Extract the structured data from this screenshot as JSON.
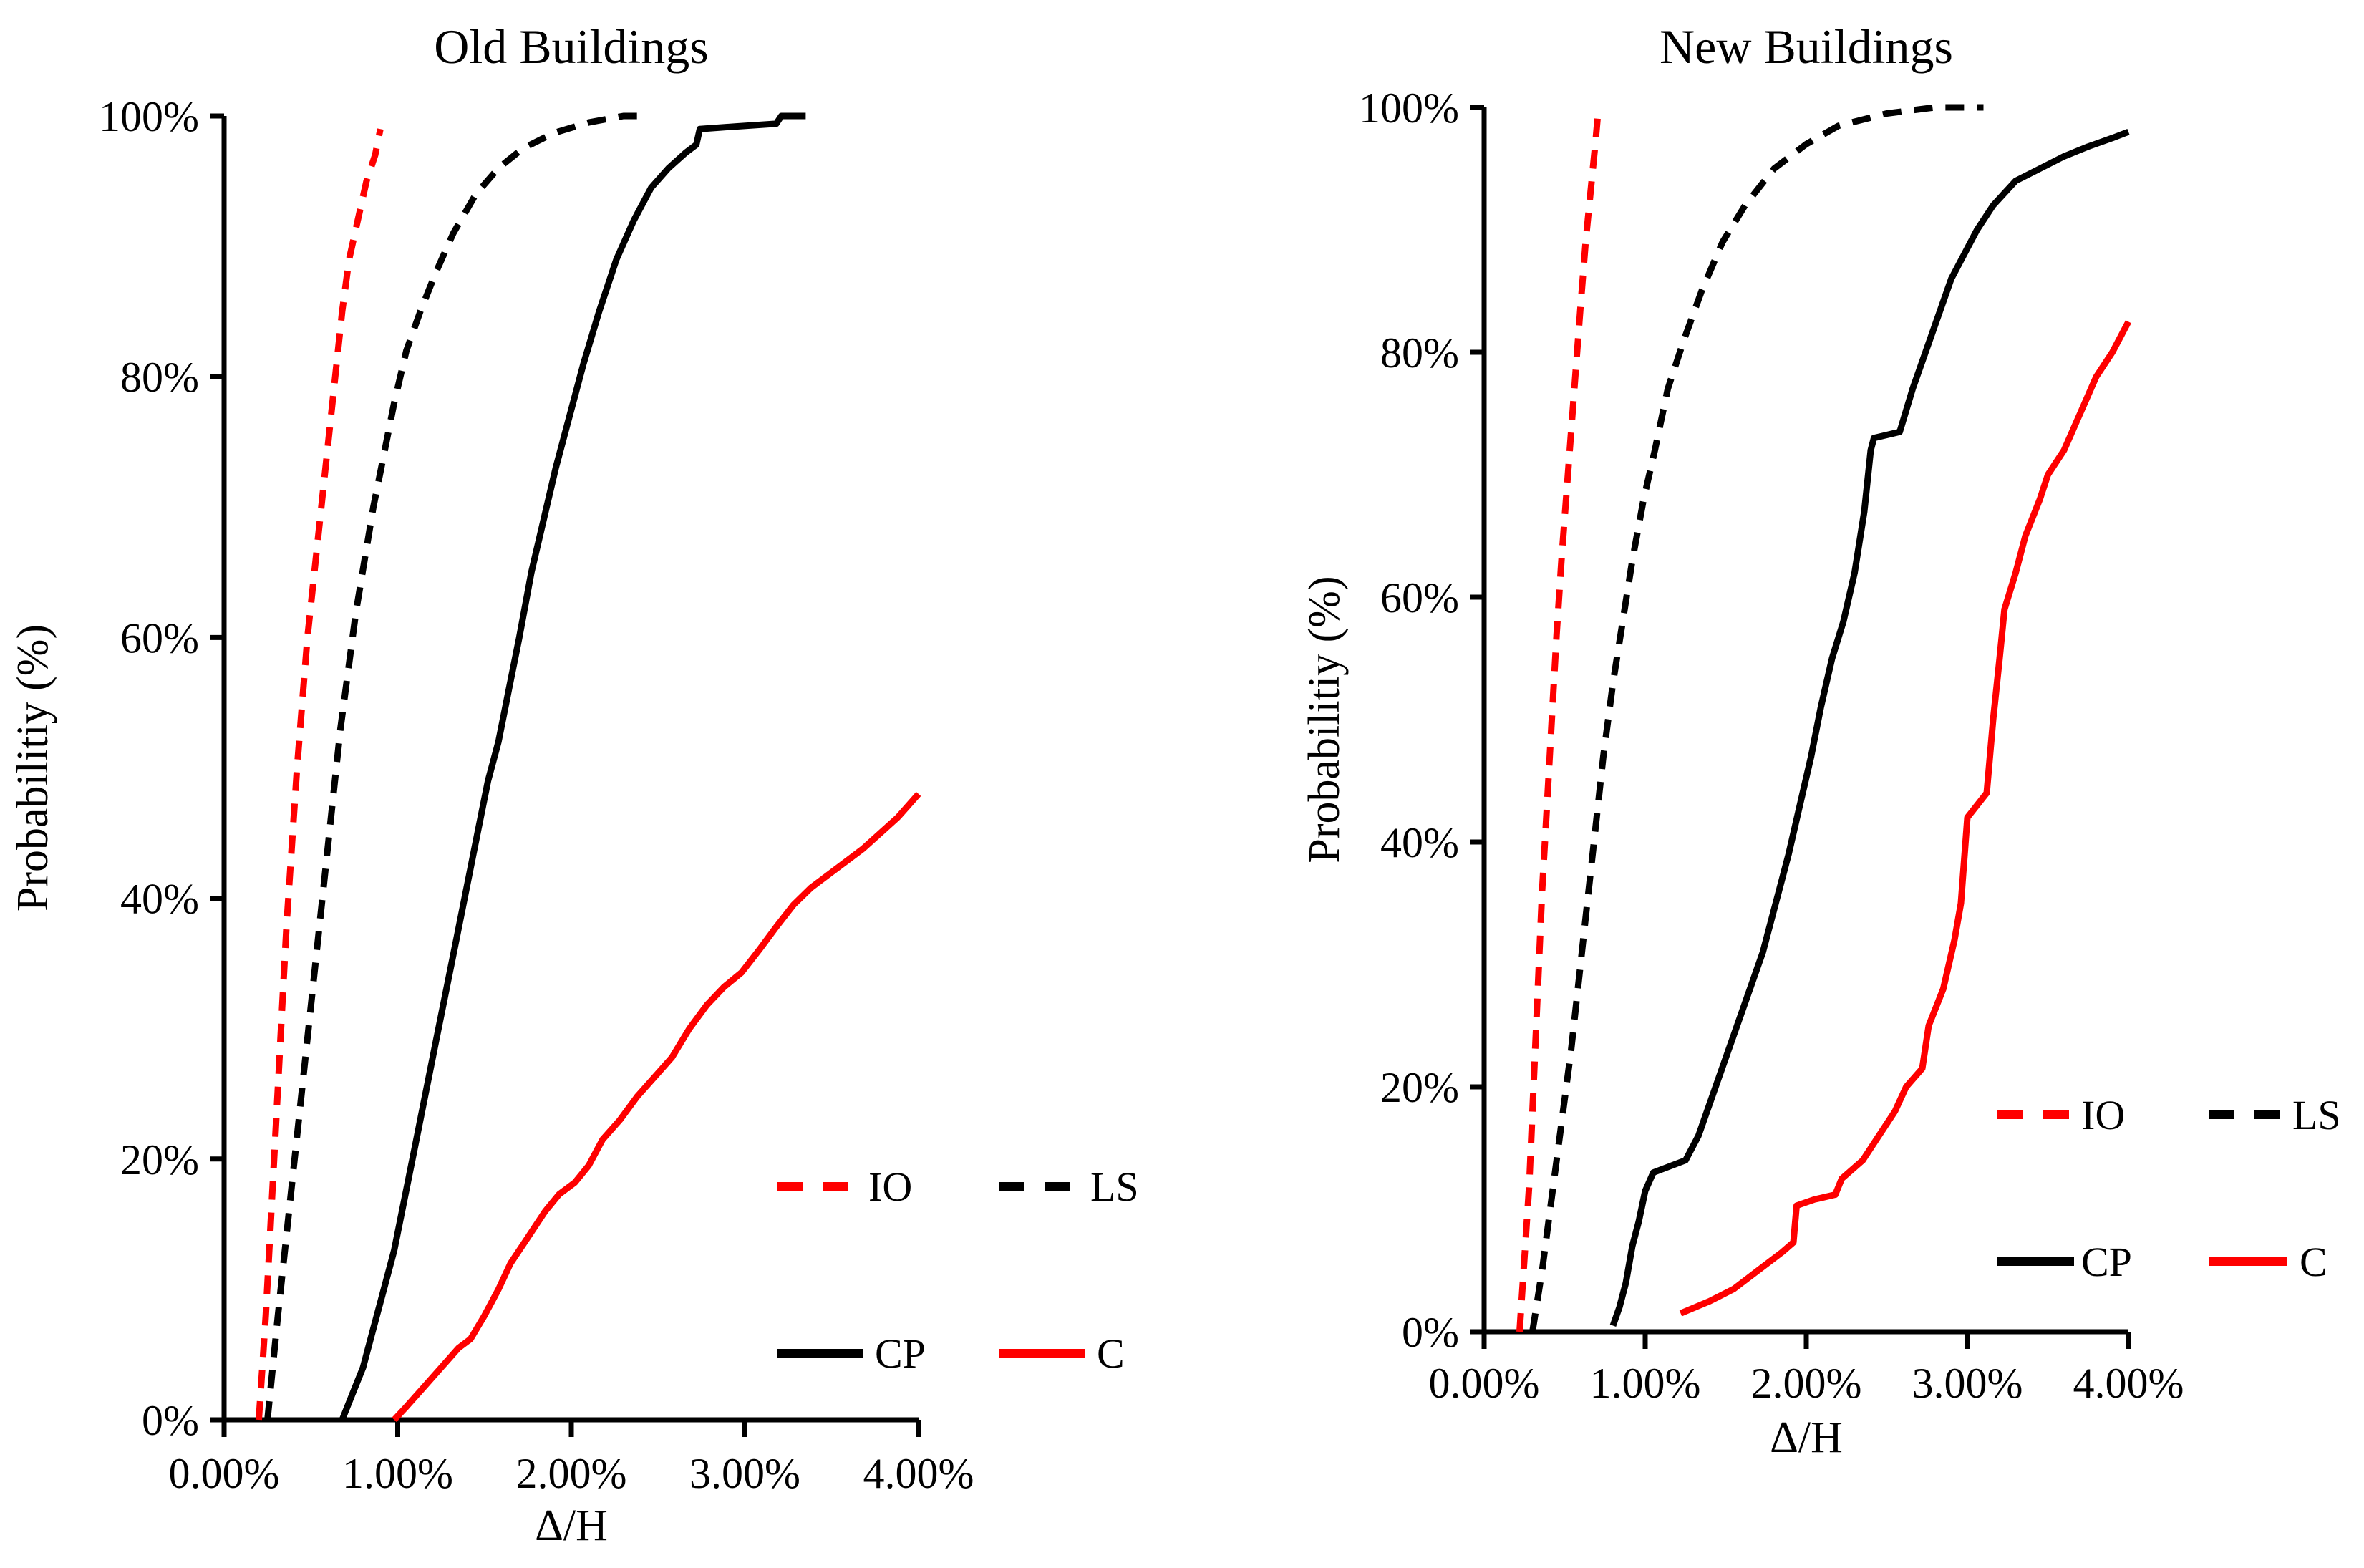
{
  "figure": {
    "background": "#ffffff",
    "text_color": "#000000",
    "accent_red": "#fe0000",
    "accent_black": "#000000"
  },
  "chart_data": [
    {
      "type": "line",
      "title": "Old Buildings",
      "xlabel": "Δ/H",
      "ylabel": "Probabilitiy (%)",
      "xlim": [
        0,
        4
      ],
      "ylim": [
        0,
        100
      ],
      "grid": false,
      "legend_position": "inside-lower-right",
      "x_tick_values": [
        0,
        1,
        2,
        3,
        4
      ],
      "x_tick_labels": [
        "0.00%",
        "1.00%",
        "2.00%",
        "3.00%",
        "4.00%"
      ],
      "y_tick_values": [
        0,
        20,
        40,
        60,
        80,
        100
      ],
      "y_tick_labels": [
        "0%",
        "20%",
        "40%",
        "60%",
        "80%",
        "100%"
      ],
      "series": [
        {
          "name": "IO",
          "color": "#fe0000",
          "style": "dashed",
          "points": [
            [
              0.2,
              0
            ],
            [
              0.22,
              4
            ],
            [
              0.24,
              8
            ],
            [
              0.26,
              13
            ],
            [
              0.28,
              18
            ],
            [
              0.3,
              23
            ],
            [
              0.32,
              28
            ],
            [
              0.34,
              33
            ],
            [
              0.36,
              38
            ],
            [
              0.39,
              44
            ],
            [
              0.42,
              50
            ],
            [
              0.45,
              55
            ],
            [
              0.48,
              60
            ],
            [
              0.52,
              65
            ],
            [
              0.56,
              70
            ],
            [
              0.6,
              75
            ],
            [
              0.64,
              80
            ],
            [
              0.68,
              85
            ],
            [
              0.72,
              89
            ],
            [
              0.77,
              92
            ],
            [
              0.82,
              95
            ],
            [
              0.87,
              97
            ],
            [
              0.9,
              99
            ]
          ]
        },
        {
          "name": "LS",
          "color": "#000000",
          "style": "dashed",
          "points": [
            [
              0.25,
              0
            ],
            [
              0.28,
              4
            ],
            [
              0.31,
              8
            ],
            [
              0.35,
              13
            ],
            [
              0.39,
              18
            ],
            [
              0.43,
              23
            ],
            [
              0.47,
              28
            ],
            [
              0.51,
              33
            ],
            [
              0.55,
              38
            ],
            [
              0.59,
              43
            ],
            [
              0.63,
              48
            ],
            [
              0.67,
              53
            ],
            [
              0.71,
              57
            ],
            [
              0.76,
              62
            ],
            [
              0.81,
              66
            ],
            [
              0.86,
              70
            ],
            [
              0.92,
              74
            ],
            [
              0.98,
              78
            ],
            [
              1.05,
              82
            ],
            [
              1.13,
              85
            ],
            [
              1.22,
              88
            ],
            [
              1.32,
              91
            ],
            [
              1.45,
              94
            ],
            [
              1.58,
              96
            ],
            [
              1.72,
              97.5
            ],
            [
              1.9,
              98.7
            ],
            [
              2.1,
              99.5
            ],
            [
              2.3,
              100
            ],
            [
              2.45,
              100
            ]
          ]
        },
        {
          "name": "CP",
          "color": "#000000",
          "style": "solid",
          "points": [
            [
              0.68,
              0
            ],
            [
              0.74,
              2
            ],
            [
              0.8,
              4
            ],
            [
              0.86,
              7
            ],
            [
              0.92,
              10
            ],
            [
              0.98,
              13
            ],
            [
              1.04,
              17
            ],
            [
              1.1,
              21
            ],
            [
              1.16,
              25
            ],
            [
              1.22,
              29
            ],
            [
              1.28,
              33
            ],
            [
              1.34,
              37
            ],
            [
              1.4,
              41
            ],
            [
              1.46,
              45
            ],
            [
              1.52,
              49
            ],
            [
              1.58,
              52
            ],
            [
              1.64,
              56
            ],
            [
              1.7,
              60
            ],
            [
              1.77,
              65
            ],
            [
              1.84,
              69
            ],
            [
              1.91,
              73
            ],
            [
              1.99,
              77
            ],
            [
              2.07,
              81
            ],
            [
              2.16,
              85
            ],
            [
              2.26,
              89
            ],
            [
              2.36,
              92
            ],
            [
              2.46,
              94.5
            ],
            [
              2.56,
              96
            ],
            [
              2.66,
              97.2
            ],
            [
              2.72,
              97.8
            ],
            [
              2.74,
              99
            ],
            [
              2.95,
              99.2
            ],
            [
              3.18,
              99.4
            ],
            [
              3.21,
              100
            ],
            [
              3.35,
              100
            ]
          ]
        },
        {
          "name": "C",
          "color": "#fe0000",
          "style": "solid",
          "points": [
            [
              0.98,
              0
            ],
            [
              1.05,
              1
            ],
            [
              1.15,
              2.5
            ],
            [
              1.25,
              4
            ],
            [
              1.35,
              5.5
            ],
            [
              1.42,
              6.2
            ],
            [
              1.5,
              8
            ],
            [
              1.58,
              10
            ],
            [
              1.65,
              12
            ],
            [
              1.75,
              14
            ],
            [
              1.85,
              16
            ],
            [
              1.93,
              17.3
            ],
            [
              2.02,
              18.2
            ],
            [
              2.1,
              19.5
            ],
            [
              2.18,
              21.5
            ],
            [
              2.28,
              23
            ],
            [
              2.38,
              24.8
            ],
            [
              2.48,
              26.3
            ],
            [
              2.58,
              27.8
            ],
            [
              2.68,
              30
            ],
            [
              2.78,
              31.8
            ],
            [
              2.88,
              33.2
            ],
            [
              2.98,
              34.3
            ],
            [
              3.08,
              36
            ],
            [
              3.18,
              37.8
            ],
            [
              3.28,
              39.5
            ],
            [
              3.38,
              40.8
            ],
            [
              3.48,
              41.8
            ],
            [
              3.58,
              42.8
            ],
            [
              3.68,
              43.8
            ],
            [
              3.78,
              45
            ],
            [
              3.88,
              46.2
            ],
            [
              4.0,
              48
            ]
          ]
        }
      ]
    },
    {
      "type": "line",
      "title": "New Buildings",
      "xlabel": "Δ/H",
      "ylabel": "Probabilitiy (%)",
      "xlim": [
        0,
        4
      ],
      "ylim": [
        0,
        100
      ],
      "grid": false,
      "legend_position": "inside-lower-right",
      "x_tick_values": [
        0,
        1,
        2,
        3,
        4
      ],
      "x_tick_labels": [
        "0.00%",
        "1.00%",
        "2.00%",
        "3.00%",
        "4.00%"
      ],
      "y_tick_values": [
        0,
        20,
        40,
        60,
        80,
        100
      ],
      "y_tick_labels": [
        "0%",
        "20%",
        "40%",
        "60%",
        "80%",
        "100%"
      ],
      "series": [
        {
          "name": "IO",
          "color": "#fe0000",
          "style": "dashed",
          "points": [
            [
              0.22,
              0
            ],
            [
              0.25,
              6
            ],
            [
              0.28,
              12
            ],
            [
              0.3,
              18
            ],
            [
              0.32,
              24
            ],
            [
              0.34,
              30
            ],
            [
              0.36,
              36
            ],
            [
              0.39,
              43
            ],
            [
              0.42,
              50
            ],
            [
              0.45,
              57
            ],
            [
              0.48,
              63
            ],
            [
              0.52,
              70
            ],
            [
              0.56,
              77
            ],
            [
              0.6,
              84
            ],
            [
              0.63,
              89
            ],
            [
              0.66,
              93
            ],
            [
              0.69,
              97
            ],
            [
              0.71,
              100
            ]
          ]
        },
        {
          "name": "LS",
          "color": "#000000",
          "style": "dashed",
          "points": [
            [
              0.3,
              0
            ],
            [
              0.36,
              5
            ],
            [
              0.42,
              11
            ],
            [
              0.48,
              17
            ],
            [
              0.54,
              23
            ],
            [
              0.59,
              29
            ],
            [
              0.64,
              35
            ],
            [
              0.69,
              41
            ],
            [
              0.74,
              47
            ],
            [
              0.8,
              53
            ],
            [
              0.86,
              58
            ],
            [
              0.92,
              63
            ],
            [
              0.99,
              68
            ],
            [
              1.06,
              72
            ],
            [
              1.14,
              77
            ],
            [
              1.24,
              81
            ],
            [
              1.35,
              85
            ],
            [
              1.48,
              89
            ],
            [
              1.62,
              92
            ],
            [
              1.8,
              95
            ],
            [
              2.0,
              97
            ],
            [
              2.2,
              98.5
            ],
            [
              2.5,
              99.5
            ],
            [
              2.8,
              100
            ],
            [
              3.1,
              100
            ]
          ]
        },
        {
          "name": "CP",
          "color": "#000000",
          "style": "solid",
          "points": [
            [
              0.8,
              0.5
            ],
            [
              0.84,
              2
            ],
            [
              0.88,
              4
            ],
            [
              0.92,
              7
            ],
            [
              0.96,
              9
            ],
            [
              1.0,
              11.5
            ],
            [
              1.05,
              13
            ],
            [
              1.25,
              14
            ],
            [
              1.33,
              16
            ],
            [
              1.41,
              19
            ],
            [
              1.49,
              22
            ],
            [
              1.57,
              25
            ],
            [
              1.65,
              28
            ],
            [
              1.73,
              31
            ],
            [
              1.81,
              35
            ],
            [
              1.89,
              39
            ],
            [
              1.96,
              43
            ],
            [
              2.03,
              47
            ],
            [
              2.09,
              51
            ],
            [
              2.16,
              55
            ],
            [
              2.23,
              58
            ],
            [
              2.3,
              62
            ],
            [
              2.36,
              67
            ],
            [
              2.4,
              72
            ],
            [
              2.42,
              73
            ],
            [
              2.58,
              73.5
            ],
            [
              2.66,
              77
            ],
            [
              2.74,
              80
            ],
            [
              2.82,
              83
            ],
            [
              2.9,
              86
            ],
            [
              2.98,
              88
            ],
            [
              3.06,
              90
            ],
            [
              3.16,
              92
            ],
            [
              3.3,
              94
            ],
            [
              3.45,
              95
            ],
            [
              3.6,
              96
            ],
            [
              3.75,
              96.8
            ],
            [
              3.9,
              97.5
            ],
            [
              4.0,
              98
            ]
          ]
        },
        {
          "name": "C",
          "color": "#fe0000",
          "style": "solid",
          "points": [
            [
              1.22,
              1.5
            ],
            [
              1.4,
              2.5
            ],
            [
              1.55,
              3.5
            ],
            [
              1.7,
              5
            ],
            [
              1.85,
              6.5
            ],
            [
              1.92,
              7.3
            ],
            [
              1.94,
              10.3
            ],
            [
              2.05,
              10.8
            ],
            [
              2.18,
              11.2
            ],
            [
              2.22,
              12.5
            ],
            [
              2.35,
              14
            ],
            [
              2.45,
              16
            ],
            [
              2.55,
              18
            ],
            [
              2.62,
              20
            ],
            [
              2.72,
              21.5
            ],
            [
              2.76,
              25
            ],
            [
              2.85,
              28
            ],
            [
              2.92,
              32
            ],
            [
              2.96,
              35
            ],
            [
              3.0,
              42
            ],
            [
              3.06,
              43
            ],
            [
              3.12,
              44
            ],
            [
              3.16,
              50
            ],
            [
              3.2,
              55
            ],
            [
              3.23,
              59
            ],
            [
              3.3,
              62
            ],
            [
              3.36,
              65
            ],
            [
              3.45,
              68
            ],
            [
              3.5,
              70
            ],
            [
              3.6,
              72
            ],
            [
              3.7,
              75
            ],
            [
              3.8,
              78
            ],
            [
              3.9,
              80
            ],
            [
              4.0,
              82.5
            ]
          ]
        }
      ]
    }
  ]
}
